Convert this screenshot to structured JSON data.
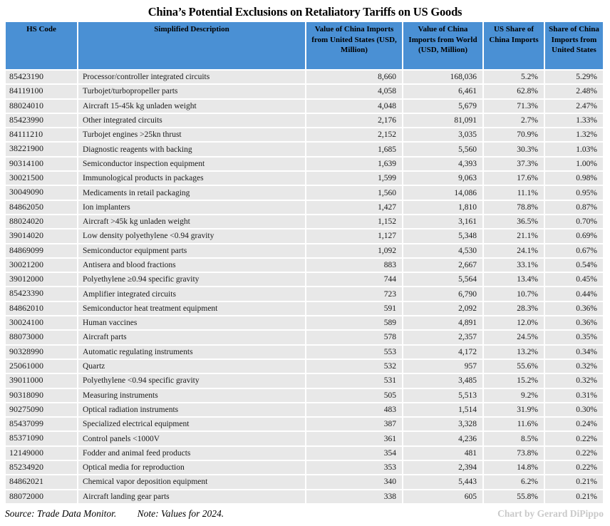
{
  "title": "China’s Potential Exclusions on Retaliatory Tariffs on US Goods",
  "colors": {
    "header_bg": "#4A90D4",
    "row_bg": "#E8E8E8",
    "page_bg": "#FFFFFF",
    "credit_text": "#C9C9C9",
    "body_text": "#1A1A1A"
  },
  "footer": {
    "source": "Source: Trade Data Monitor.",
    "note": "Note: Values for 2024.",
    "credit": "Chart by Gerard DiPippo"
  },
  "chart_data": {
    "type": "table",
    "title": "China’s Potential Exclusions on Retaliatory Tariffs on US Goods",
    "columns": [
      "HS Code",
      "Simplified Description",
      "Value of China Imports from United States (USD, Million)",
      "Value of China Imports from World (USD, Million)",
      "US Share of China Imports",
      "Share of China Imports from United States"
    ],
    "rows": [
      [
        "85423190",
        "Processor/controller integrated circuits",
        "8,660",
        "168,036",
        "5.2%",
        "5.29%"
      ],
      [
        "84119100",
        "Turbojet/turbopropeller parts",
        "4,058",
        "6,461",
        "62.8%",
        "2.48%"
      ],
      [
        "88024010",
        "Aircraft 15-45k kg unladen weight",
        "4,048",
        "5,679",
        "71.3%",
        "2.47%"
      ],
      [
        "85423990",
        "Other integrated circuits",
        "2,176",
        "81,091",
        "2.7%",
        "1.33%"
      ],
      [
        "84111210",
        "Turbojet engines >25kn thrust",
        "2,152",
        "3,035",
        "70.9%",
        "1.32%"
      ],
      [
        "38221900",
        "Diagnostic reagents with backing",
        "1,685",
        "5,560",
        "30.3%",
        "1.03%"
      ],
      [
        "90314100",
        "Semiconductor inspection equipment",
        "1,639",
        "4,393",
        "37.3%",
        "1.00%"
      ],
      [
        "30021500",
        "Immunological products in packages",
        "1,599",
        "9,063",
        "17.6%",
        "0.98%"
      ],
      [
        "30049090",
        "Medicaments in retail packaging",
        "1,560",
        "14,086",
        "11.1%",
        "0.95%"
      ],
      [
        "84862050",
        "Ion implanters",
        "1,427",
        "1,810",
        "78.8%",
        "0.87%"
      ],
      [
        "88024020",
        "Aircraft >45k kg unladen weight",
        "1,152",
        "3,161",
        "36.5%",
        "0.70%"
      ],
      [
        "39014020",
        "Low density polyethylene <0.94 gravity",
        "1,127",
        "5,348",
        "21.1%",
        "0.69%"
      ],
      [
        "84869099",
        "Semiconductor equipment parts",
        "1,092",
        "4,530",
        "24.1%",
        "0.67%"
      ],
      [
        "30021200",
        "Antisera and blood fractions",
        "883",
        "2,667",
        "33.1%",
        "0.54%"
      ],
      [
        "39012000",
        "Polyethylene ≥0.94 specific gravity",
        "744",
        "5,564",
        "13.4%",
        "0.45%"
      ],
      [
        "85423390",
        "Amplifier integrated circuits",
        "723",
        "6,790",
        "10.7%",
        "0.44%"
      ],
      [
        "84862010",
        "Semiconductor heat treatment equipment",
        "591",
        "2,092",
        "28.3%",
        "0.36%"
      ],
      [
        "30024100",
        "Human vaccines",
        "589",
        "4,891",
        "12.0%",
        "0.36%"
      ],
      [
        "88073000",
        "Aircraft parts",
        "578",
        "2,357",
        "24.5%",
        "0.35%"
      ],
      [
        "90328990",
        "Automatic regulating instruments",
        "553",
        "4,172",
        "13.2%",
        "0.34%"
      ],
      [
        "25061000",
        "Quartz",
        "532",
        "957",
        "55.6%",
        "0.32%"
      ],
      [
        "39011000",
        "Polyethylene <0.94 specific gravity",
        "531",
        "3,485",
        "15.2%",
        "0.32%"
      ],
      [
        "90318090",
        "Measuring instruments",
        "505",
        "5,513",
        "9.2%",
        "0.31%"
      ],
      [
        "90275090",
        "Optical radiation instruments",
        "483",
        "1,514",
        "31.9%",
        "0.30%"
      ],
      [
        "85437099",
        "Specialized electrical equipment",
        "387",
        "3,328",
        "11.6%",
        "0.24%"
      ],
      [
        "85371090",
        "Control panels <1000V",
        "361",
        "4,236",
        "8.5%",
        "0.22%"
      ],
      [
        "12149000",
        "Fodder and animal feed products",
        "354",
        "481",
        "73.8%",
        "0.22%"
      ],
      [
        "85234920",
        "Optical media for reproduction",
        "353",
        "2,394",
        "14.8%",
        "0.22%"
      ],
      [
        "84862021",
        "Chemical vapor deposition equipment",
        "340",
        "5,443",
        "6.2%",
        "0.21%"
      ],
      [
        "88072000",
        "Aircraft landing gear parts",
        "338",
        "605",
        "55.8%",
        "0.21%"
      ]
    ]
  }
}
